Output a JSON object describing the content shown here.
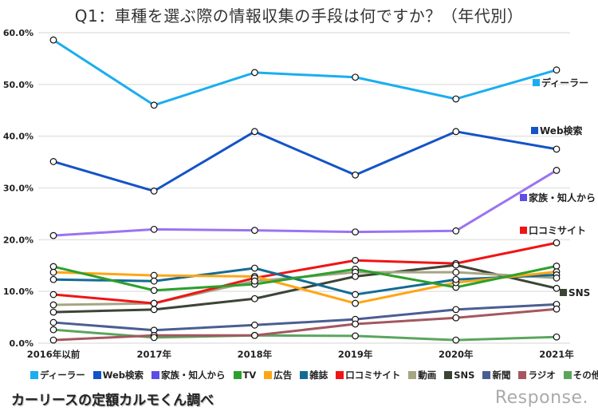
{
  "chart_data": {
    "type": "line",
    "title": "Q1：車種を選ぶ際の情報収集の手段は何ですか？（年代別）",
    "xlabel": "",
    "ylabel": "",
    "ylim": [
      0,
      60
    ],
    "yticks": [
      "0.0%",
      "10.0%",
      "20.0%",
      "30.0%",
      "40.0%",
      "50.0%",
      "60.0%"
    ],
    "ytick_values": [
      0,
      10,
      20,
      30,
      40,
      50,
      60
    ],
    "categories": [
      "2016年以前",
      "2017年",
      "2018年",
      "2019年",
      "2020年",
      "2021年"
    ],
    "grid": true,
    "legend_position": "bottom",
    "series": [
      {
        "name": "ディーラー",
        "color": "#1aaef0",
        "end_label": true,
        "values": [
          58.6,
          46.0,
          52.3,
          51.4,
          47.2,
          52.8
        ]
      },
      {
        "name": "Web検索",
        "color": "#1453c8",
        "end_label": true,
        "values": [
          35.1,
          29.4,
          40.9,
          32.5,
          40.9,
          37.5
        ]
      },
      {
        "name": "家族・知人から",
        "color": "#9a74f0",
        "legend_color": "#5b4de6",
        "end_label": true,
        "values": [
          20.8,
          22.0,
          21.8,
          21.5,
          21.7,
          33.4
        ]
      },
      {
        "name": "TV",
        "color": "#2ca02c",
        "end_label": false,
        "values": [
          14.8,
          10.2,
          11.4,
          14.3,
          10.8,
          14.9
        ]
      },
      {
        "name": "広告",
        "color": "#ffa514",
        "end_label": false,
        "values": [
          13.7,
          13.1,
          12.9,
          7.7,
          11.7,
          13.8
        ]
      },
      {
        "name": "雑誌",
        "color": "#136b94",
        "end_label": false,
        "values": [
          12.3,
          12.0,
          14.5,
          9.4,
          12.3,
          13.2
        ]
      },
      {
        "name": "口コミサイト",
        "color": "#f01414",
        "end_label": true,
        "values": [
          9.4,
          7.7,
          12.6,
          16.0,
          15.4,
          19.4
        ]
      },
      {
        "name": "動画",
        "color": "#a6a584",
        "end_label": false,
        "values": [
          7.4,
          7.7,
          12.0,
          13.7,
          13.7,
          12.6
        ]
      },
      {
        "name": "SNS",
        "color": "#3c4535",
        "end_label": true,
        "values": [
          6.0,
          6.5,
          8.6,
          12.9,
          15.1,
          10.6
        ]
      },
      {
        "name": "新聞",
        "color": "#4a5e92",
        "end_label": false,
        "values": [
          4.0,
          2.5,
          3.5,
          4.6,
          6.5,
          7.5
        ]
      },
      {
        "name": "ラジオ",
        "color": "#a4575f",
        "end_label": false,
        "values": [
          0.6,
          1.5,
          1.5,
          3.7,
          4.9,
          6.6
        ]
      },
      {
        "name": "その他",
        "color": "#5ba55f",
        "end_label": false,
        "values": [
          2.6,
          1.1,
          1.5,
          1.4,
          0.6,
          1.2
        ]
      }
    ]
  },
  "footer": {
    "source": "カーリースの定額カルモくん調べ",
    "brand": "Response."
  }
}
